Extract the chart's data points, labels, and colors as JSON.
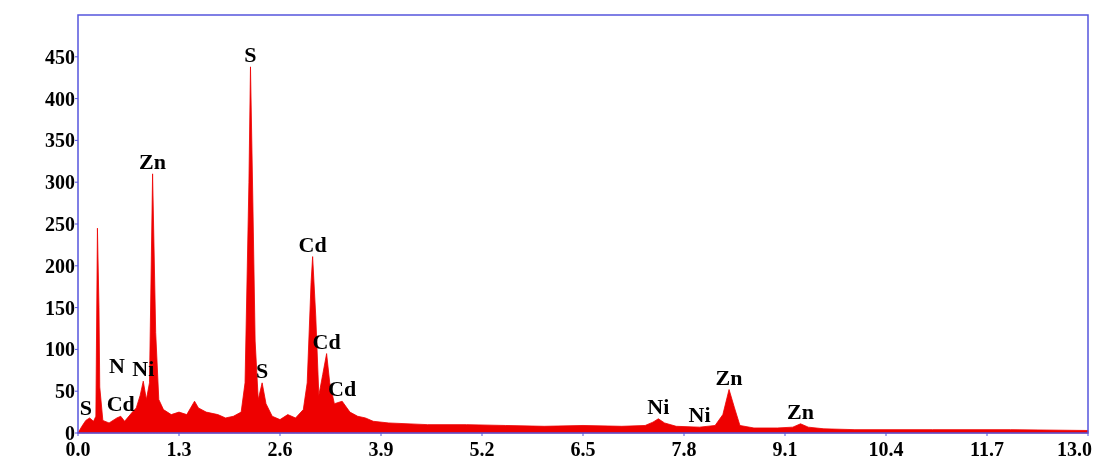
{
  "chart_data": {
    "type": "area",
    "xlim": [
      0,
      13
    ],
    "ylim": [
      0,
      500
    ],
    "xticks": [
      {
        "value": 0,
        "label": "0.0"
      },
      {
        "value": 1.3,
        "label": "1.3"
      },
      {
        "value": 2.6,
        "label": "2.6"
      },
      {
        "value": 3.9,
        "label": "3.9"
      },
      {
        "value": 5.2,
        "label": "5.2"
      },
      {
        "value": 6.5,
        "label": "6.5"
      },
      {
        "value": 7.8,
        "label": "7.8"
      },
      {
        "value": 9.1,
        "label": "9.1"
      },
      {
        "value": 10.4,
        "label": "10.4"
      },
      {
        "value": 11.7,
        "label": "11.7"
      },
      {
        "value": 13,
        "label": "13.0"
      }
    ],
    "yticks": [
      0,
      50,
      100,
      150,
      200,
      250,
      300,
      350,
      400,
      450
    ],
    "grid": false,
    "series": [
      {
        "color": "#ee0000",
        "x": [
          0,
          0.05,
          0.1,
          0.15,
          0.2,
          0.23,
          0.25,
          0.27,
          0.28,
          0.32,
          0.4,
          0.5,
          0.55,
          0.6,
          0.7,
          0.75,
          0.8,
          0.84,
          0.88,
          0.92,
          0.96,
          1.0,
          1.04,
          1.1,
          1.2,
          1.3,
          1.4,
          1.5,
          1.55,
          1.65,
          1.8,
          1.9,
          2.0,
          2.1,
          2.15,
          2.2,
          2.22,
          2.25,
          2.28,
          2.32,
          2.37,
          2.42,
          2.5,
          2.6,
          2.7,
          2.8,
          2.9,
          2.95,
          3.0,
          3.02,
          3.06,
          3.1,
          3.15,
          3.2,
          3.24,
          3.3,
          3.4,
          3.5,
          3.6,
          3.7,
          3.8,
          4.0,
          4.5,
          5.0,
          5.5,
          6.0,
          6.5,
          7.0,
          7.3,
          7.4,
          7.47,
          7.55,
          7.7,
          8.0,
          8.2,
          8.3,
          8.38,
          8.45,
          8.52,
          8.7,
          9.0,
          9.2,
          9.3,
          9.4,
          9.6,
          10,
          11,
          12,
          13
        ],
        "values": [
          0,
          8,
          15,
          18,
          14,
          20,
          245,
          150,
          55,
          15,
          12,
          18,
          20,
          14,
          25,
          30,
          45,
          62,
          40,
          60,
          310,
          120,
          40,
          28,
          22,
          25,
          22,
          38,
          30,
          25,
          22,
          18,
          20,
          25,
          60,
          300,
          438,
          280,
          110,
          40,
          60,
          35,
          20,
          16,
          22,
          18,
          28,
          60,
          180,
          211,
          140,
          45,
          70,
          95,
          60,
          35,
          38,
          25,
          20,
          18,
          14,
          12,
          10,
          10,
          9,
          8,
          9,
          8,
          9,
          13,
          17,
          12,
          8,
          7,
          9,
          22,
          52,
          30,
          9,
          6,
          6,
          7,
          11,
          7,
          5,
          4,
          4,
          4,
          3
        ]
      }
    ],
    "annotations": [
      {
        "text": "S",
        "x": 0.1,
        "y": 15
      },
      {
        "text": "Cd",
        "x": 0.55,
        "y": 20
      },
      {
        "text": "N",
        "x": 0.5,
        "y": 18
      },
      {
        "text": "Ni",
        "x": 0.84,
        "y": 62
      },
      {
        "text": "Zn",
        "x": 0.96,
        "y": 310
      },
      {
        "text": "S",
        "x": 2.22,
        "y": 438
      },
      {
        "text": "S",
        "x": 2.37,
        "y": 60
      },
      {
        "text": "Cd",
        "x": 3.02,
        "y": 211
      },
      {
        "text": "Cd",
        "x": 3.2,
        "y": 95
      },
      {
        "text": "Cd",
        "x": 3.4,
        "y": 38
      },
      {
        "text": "Ni",
        "x": 7.47,
        "y": 17
      },
      {
        "text": "Ni",
        "x": 8.0,
        "y": 7
      },
      {
        "text": "Zn",
        "x": 8.38,
        "y": 52
      },
      {
        "text": "Zn",
        "x": 9.3,
        "y": 11
      }
    ]
  }
}
